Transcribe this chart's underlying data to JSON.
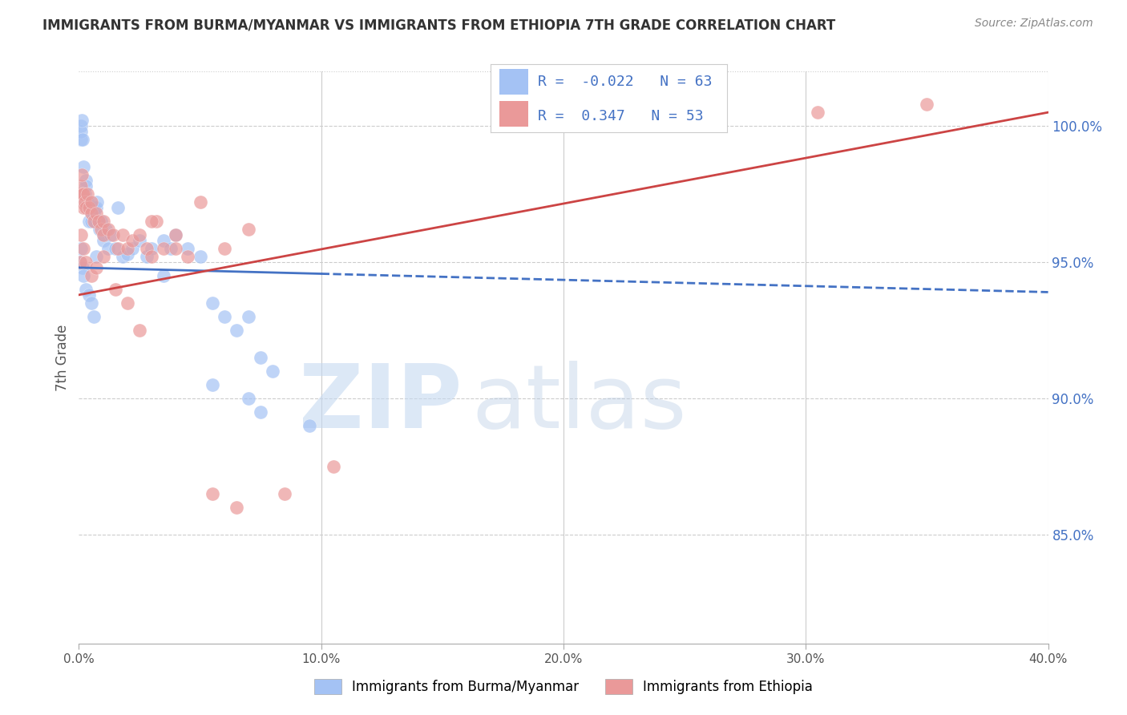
{
  "title": "IMMIGRANTS FROM BURMA/MYANMAR VS IMMIGRANTS FROM ETHIOPIA 7TH GRADE CORRELATION CHART",
  "source": "Source: ZipAtlas.com",
  "ylabel": "7th Grade",
  "x_range": [
    0,
    40
  ],
  "y_range": [
    81,
    102
  ],
  "R_blue": -0.022,
  "N_blue": 63,
  "R_pink": 0.347,
  "N_pink": 53,
  "blue_color": "#a4c2f4",
  "pink_color": "#ea9999",
  "trend_blue": "#4472c4",
  "trend_pink": "#cc4444",
  "watermark_zip": "ZIP",
  "watermark_atlas": "atlas",
  "legend_label_blue": "Immigrants from Burma/Myanmar",
  "legend_label_pink": "Immigrants from Ethiopia",
  "blue_scatter_x": [
    0.05,
    0.08,
    0.1,
    0.1,
    0.12,
    0.15,
    0.2,
    0.2,
    0.25,
    0.3,
    0.3,
    0.35,
    0.4,
    0.4,
    0.5,
    0.5,
    0.55,
    0.6,
    0.6,
    0.65,
    0.7,
    0.75,
    0.8,
    0.85,
    0.9,
    1.0,
    1.0,
    1.1,
    1.2,
    1.3,
    1.5,
    1.6,
    1.8,
    2.0,
    2.2,
    2.5,
    2.8,
    3.0,
    3.5,
    3.8,
    4.0,
    4.5,
    5.0,
    5.5,
    6.0,
    6.5,
    7.0,
    7.5,
    8.0,
    0.05,
    0.1,
    0.15,
    0.2,
    0.3,
    0.4,
    0.5,
    0.6,
    0.7,
    3.5,
    5.5,
    7.0,
    7.5,
    9.5
  ],
  "blue_scatter_y": [
    97.5,
    99.5,
    100.0,
    99.8,
    100.2,
    99.5,
    98.5,
    97.2,
    97.5,
    98.0,
    97.8,
    97.2,
    97.0,
    96.5,
    96.8,
    96.5,
    96.8,
    97.0,
    96.8,
    96.5,
    97.0,
    97.2,
    96.5,
    96.2,
    96.5,
    96.0,
    95.8,
    96.2,
    95.5,
    96.0,
    95.5,
    97.0,
    95.2,
    95.3,
    95.5,
    95.8,
    95.2,
    95.5,
    95.8,
    95.5,
    96.0,
    95.5,
    95.2,
    93.5,
    93.0,
    92.5,
    93.0,
    91.5,
    91.0,
    95.0,
    95.5,
    94.8,
    94.5,
    94.0,
    93.8,
    93.5,
    93.0,
    95.2,
    94.5,
    90.5,
    90.0,
    89.5,
    89.0
  ],
  "pink_scatter_x": [
    0.05,
    0.08,
    0.1,
    0.12,
    0.15,
    0.2,
    0.2,
    0.25,
    0.3,
    0.35,
    0.4,
    0.5,
    0.5,
    0.6,
    0.7,
    0.8,
    0.9,
    1.0,
    1.0,
    1.2,
    1.4,
    1.6,
    1.8,
    2.0,
    2.2,
    2.5,
    2.8,
    3.0,
    3.2,
    3.5,
    4.0,
    4.5,
    5.0,
    6.0,
    7.0,
    0.05,
    0.1,
    0.2,
    0.3,
    0.5,
    0.7,
    1.0,
    1.5,
    2.0,
    2.5,
    3.0,
    4.0,
    5.5,
    6.5,
    8.5,
    10.5,
    30.5,
    35.0
  ],
  "pink_scatter_y": [
    97.5,
    97.2,
    97.8,
    98.2,
    97.5,
    97.0,
    97.5,
    97.2,
    97.0,
    97.5,
    97.0,
    96.8,
    97.2,
    96.5,
    96.8,
    96.5,
    96.2,
    96.5,
    96.0,
    96.2,
    96.0,
    95.5,
    96.0,
    95.5,
    95.8,
    96.0,
    95.5,
    95.2,
    96.5,
    95.5,
    96.0,
    95.2,
    97.2,
    95.5,
    96.2,
    95.0,
    96.0,
    95.5,
    95.0,
    94.5,
    94.8,
    95.2,
    94.0,
    93.5,
    92.5,
    96.5,
    95.5,
    86.5,
    86.0,
    86.5,
    87.5,
    100.5,
    100.8
  ],
  "blue_trend_x0": 0,
  "blue_trend_y0": 94.8,
  "blue_trend_x1": 40,
  "blue_trend_y1": 93.9,
  "blue_solid_end": 10,
  "pink_trend_x0": 0,
  "pink_trend_y0": 93.8,
  "pink_trend_x1": 40,
  "pink_trend_y1": 100.5,
  "yticks": [
    85,
    90,
    95,
    100
  ],
  "ytick_labels": [
    "85.0%",
    "90.0%",
    "95.0%",
    "100.0%"
  ],
  "xticks": [
    0,
    10,
    20,
    30,
    40
  ],
  "xtick_labels": [
    "0.0%",
    "10.0%",
    "20.0%",
    "30.0%",
    "40.0%"
  ]
}
